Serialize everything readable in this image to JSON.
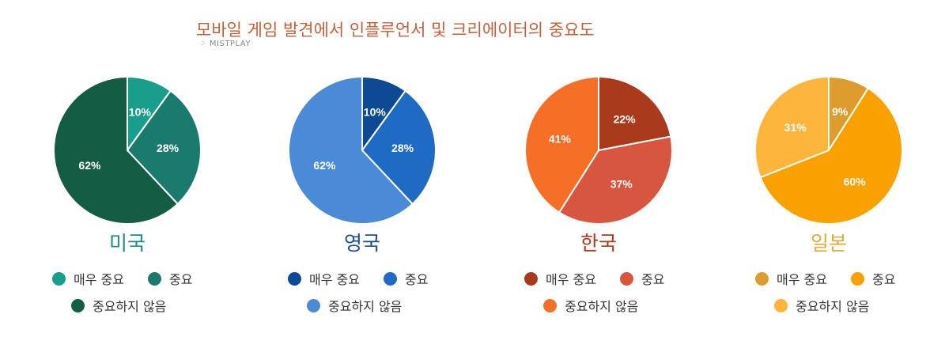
{
  "title": "모바일 게임 발견에서 인플루언서 및 크리에이터의 중요도",
  "brand": "MISTPLAY",
  "chart_data": [
    {
      "type": "pie",
      "title": "미국",
      "title_color": "#1a8e84",
      "labels": [
        "매우 중요",
        "중요",
        "중요하지 않음"
      ],
      "values": [
        10,
        28,
        62
      ],
      "data_labels": [
        "10%",
        "28%",
        "62%"
      ],
      "colors": [
        "#1a9e8c",
        "#1b7a6e",
        "#145c43"
      ]
    },
    {
      "type": "pie",
      "title": "영국",
      "title_color": "#1b4f8c",
      "labels": [
        "매우 중요",
        "중요",
        "중요하지 않음"
      ],
      "values": [
        10,
        28,
        62
      ],
      "data_labels": [
        "10%",
        "28%",
        "62%"
      ],
      "colors": [
        "#0e4a93",
        "#1f6bc4",
        "#4a8ad6"
      ]
    },
    {
      "type": "pie",
      "title": "한국",
      "title_color": "#a63b1e",
      "labels": [
        "매우 중요",
        "중요",
        "중요하지 않음"
      ],
      "values": [
        22,
        37,
        41
      ],
      "data_labels": [
        "22%",
        "37%",
        "41%"
      ],
      "colors": [
        "#a93a1b",
        "#d65640",
        "#f56f26"
      ]
    },
    {
      "type": "pie",
      "title": "일본",
      "title_color": "#e0aa3e",
      "labels": [
        "매우 중요",
        "중요",
        "중요하지 않음"
      ],
      "values": [
        9,
        60,
        31
      ],
      "data_labels": [
        "9%",
        "60%",
        "31%"
      ],
      "colors": [
        "#dc9d2e",
        "#f8a100",
        "#fdb53c"
      ]
    }
  ]
}
